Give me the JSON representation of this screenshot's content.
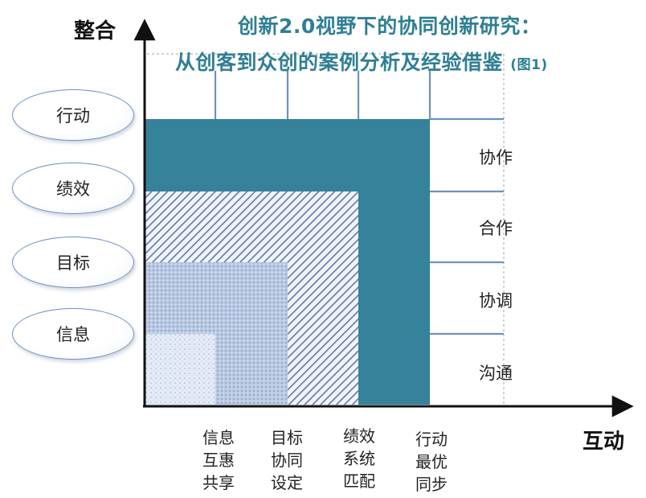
{
  "title": {
    "line1": "创新2.0视野下的协同创新研究：",
    "line2": "从创客到众创的案例分析及经验借鉴",
    "line2_suffix": "(图1)"
  },
  "axes": {
    "y_label": "整合",
    "x_label": "互动"
  },
  "y_levels": [
    "行动",
    "绩效",
    "目标",
    "信息"
  ],
  "x_levels": [
    [
      "信息",
      "互惠",
      "共享"
    ],
    [
      "目标",
      "协同",
      "设定"
    ],
    [
      "绩效",
      "系统",
      "匹配"
    ],
    [
      "行动",
      "最优",
      "同步"
    ]
  ],
  "right_levels": [
    "协作",
    "合作",
    "协调",
    "沟通"
  ],
  "colors": {
    "title": "#2f7f93",
    "teal_fill": "#35829a",
    "hatch": "#5b78b0",
    "line": "#6f90c2",
    "dashed": "#aab6c6"
  }
}
